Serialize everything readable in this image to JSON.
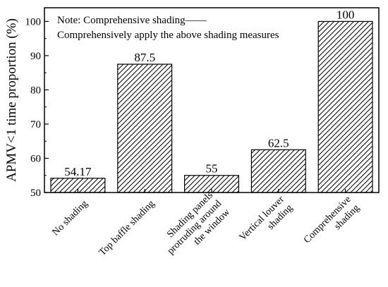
{
  "chart_data": {
    "type": "bar",
    "ylabel": "APMV<1 time proportion (%)",
    "xlabel": "",
    "ylim": [
      50,
      104
    ],
    "yticks": [
      50,
      60,
      70,
      80,
      90,
      100
    ],
    "grid": false,
    "bar_fill": "hatched (diagonal lines)",
    "note": {
      "line1": "Note: Comprehensive shading——",
      "line2": "Comprehensively apply the above shading measures"
    },
    "categories": [
      [
        "No shading"
      ],
      [
        "Top baffle shading"
      ],
      [
        "Shading panels",
        "protruding around",
        "the window"
      ],
      [
        "Vertical louver",
        "shading"
      ],
      [
        "Comprehensive",
        "shading"
      ]
    ],
    "values": [
      54.17,
      87.5,
      55,
      62.5,
      100
    ],
    "value_labels": [
      "54.17",
      "87.5",
      "55",
      "62.5",
      "100"
    ]
  },
  "colors": {
    "ink": "#000000",
    "background": "#ffffff"
  }
}
